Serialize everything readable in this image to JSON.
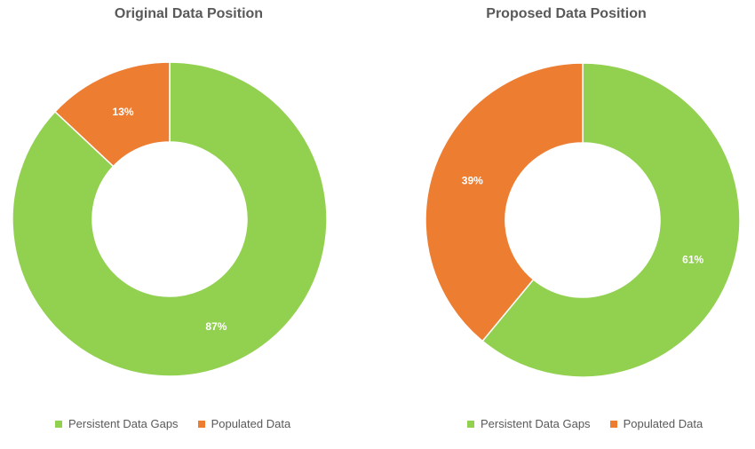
{
  "chart_data": [
    {
      "type": "pie",
      "title": "Original Data Position",
      "categories": [
        "Persistent Data Gaps",
        "Populated Data"
      ],
      "values": [
        87,
        13
      ],
      "value_labels": [
        "87%",
        "13%"
      ],
      "colors": [
        "#92D050",
        "#ED7D31"
      ],
      "legend_position": "bottom",
      "donut": true
    },
    {
      "type": "pie",
      "title": "Proposed Data Position",
      "categories": [
        "Persistent Data Gaps",
        "Populated Data"
      ],
      "values": [
        61,
        39
      ],
      "value_labels": [
        "61%",
        "39%"
      ],
      "colors": [
        "#92D050",
        "#ED7D31"
      ],
      "legend_position": "bottom",
      "donut": true
    }
  ]
}
